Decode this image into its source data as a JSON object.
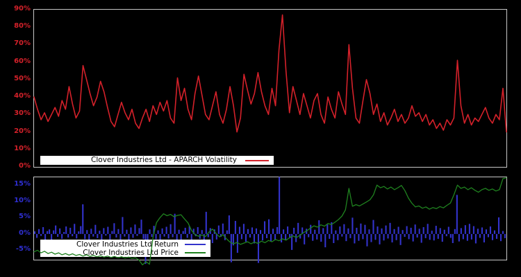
{
  "window": {
    "background": "#000000",
    "frame_color": "#c8c8c8"
  },
  "chart_data": [
    {
      "type": "line",
      "title": "Clover Industries Ltd - APARCH Volatility",
      "xlabel": "",
      "ylabel": "",
      "ylim": [
        0,
        90
      ],
      "yticks": [
        90,
        80,
        70,
        60,
        50,
        40,
        30,
        20,
        10,
        0
      ],
      "ytick_labels": [
        "90%",
        "80%",
        "70%",
        "60%",
        "50%",
        "40%",
        "30%",
        "20%",
        "10%",
        "0%"
      ],
      "axis_color": "#d4212a",
      "grid": false,
      "legend_position": "bottom-left-inside",
      "series": [
        {
          "name": "Clover Industries Ltd - APARCH Volatility",
          "color": "#d4212a",
          "unit": "%",
          "values": [
            40,
            33,
            27,
            31,
            26,
            30,
            34,
            29,
            38,
            33,
            46,
            36,
            28,
            32,
            58,
            50,
            42,
            35,
            40,
            49,
            43,
            34,
            26,
            23,
            30,
            37,
            31,
            27,
            33,
            25,
            22,
            28,
            33,
            26,
            35,
            30,
            37,
            32,
            38,
            28,
            25,
            51,
            38,
            45,
            33,
            27,
            42,
            52,
            41,
            30,
            27,
            35,
            43,
            30,
            25,
            33,
            46,
            35,
            20,
            28,
            53,
            44,
            36,
            42,
            54,
            43,
            35,
            30,
            45,
            35,
            67,
            87,
            55,
            31,
            46,
            38,
            30,
            42,
            35,
            28,
            38,
            42,
            30,
            25,
            40,
            33,
            28,
            43,
            36,
            30,
            70,
            45,
            28,
            25,
            38,
            50,
            42,
            30,
            36,
            26,
            31,
            24,
            28,
            33,
            26,
            30,
            25,
            28,
            35,
            29,
            31,
            26,
            30,
            24,
            27,
            22,
            25,
            21,
            27,
            24,
            28,
            61,
            35,
            25,
            30,
            24,
            28,
            26,
            30,
            34,
            28,
            25,
            30,
            27,
            45,
            20
          ]
        }
      ]
    },
    {
      "type": "bar+line",
      "title": "",
      "xlabel": "",
      "ylabel": "",
      "ylim": [
        -7.9,
        17.4
      ],
      "yticks": [
        15,
        10,
        5,
        0,
        -5
      ],
      "ytick_labels": [
        "15%",
        "10%",
        "5%",
        "0%",
        "-5%"
      ],
      "axis_color": "#2f2fd3",
      "grid": false,
      "legend_position": "bottom-left-inside",
      "series": [
        {
          "name": "Clover Industries Ltd Return",
          "type": "bar",
          "color": "#3333cc",
          "unit": "%",
          "values": [
            0.8,
            -1.2,
            1.5,
            -0.6,
            2.1,
            -1.8,
            0.9,
            1.4,
            -2.2,
            1.1,
            2.6,
            -0.9,
            1.7,
            -1.5,
            0.6,
            2.3,
            -1.1,
            1.9,
            -0.7,
            3.1,
            -1.4,
            0.8,
            2.4,
            9.1,
            -1.6,
            1.2,
            -2.0,
            1.6,
            -0.8,
            2.8,
            -1.3,
            1.0,
            -2.4,
            1.8,
            -0.5,
            2.2,
            -1.7,
            0.9,
            3.3,
            -1.1,
            1.5,
            -2.6,
            5.2,
            -0.8,
            1.3,
            -1.9,
            2.0,
            -1.2,
            2.9,
            -0.6,
            1.8,
            4.4,
            -1.5,
            -9.2,
            -2.1,
            1.4,
            -0.9,
            2.5,
            -1.6,
            1.1,
            -2.3,
            1.7,
            -0.8,
            2.2,
            -1.4,
            3.0,
            -1.0,
            6.2,
            -1.8,
            1.3,
            -2.7,
            0.9,
            1.9,
            -1.2,
            2.4,
            -3.1,
            1.6,
            -0.7,
            2.1,
            -1.5,
            1.2,
            -2.2,
            6.8,
            -1.0,
            1.8,
            -2.8,
            1.4,
            -1.7,
            2.6,
            -0.9,
            3.2,
            -1.9,
            1.1,
            5.7,
            -8.7,
            -3.5,
            4.0,
            -5.8,
            2.2,
            -1.6,
            3.1,
            -2.4,
            1.5,
            -1.1,
            2.0,
            -2.9,
            1.7,
            -8.9,
            1.2,
            -2.0,
            3.9,
            -1.3,
            4.5,
            -2.3,
            1.6,
            -1.9,
            2.1,
            17.5,
            -2.6,
            1.4,
            -1.8,
            2.3,
            -1.2,
            -4.9,
            1.9,
            -2.5,
            3.4,
            -1.4,
            2.0,
            -3.2,
            1.6,
            -1.0,
            2.8,
            -2.1,
            1.3,
            -1.7,
            4.2,
            -2.4,
            1.8,
            -4.1,
            2.9,
            -1.5,
            3.6,
            -2.8,
            1.1,
            -1.9,
            2.3,
            -0.8,
            3.0,
            -2.2,
            1.7,
            -1.3,
            5.0,
            -2.9,
            1.9,
            -2.1,
            3.2,
            -1.6,
            2.8,
            -3.8,
            1.4,
            -2.5,
            4.3,
            -1.8,
            2.3,
            -3.2,
            1.7,
            -2.0,
            2.6,
            -1.4,
            3.4,
            -2.6,
            1.5,
            -1.9,
            2.2,
            -3.4,
            1.2,
            -0.9,
            2.4,
            -1.6,
            1.9,
            -2.3,
            2.9,
            -1.1,
            1.6,
            -2.7,
            2.1,
            -1.3,
            3.1,
            -1.8,
            1.0,
            -2.0,
            2.5,
            -1.5,
            1.8,
            -2.4,
            1.3,
            -0.7,
            2.2,
            -1.2,
            -2.8,
            1.5,
            12.0,
            -2.3,
            1.8,
            -1.6,
            2.7,
            -2.1,
            3.1,
            -1.7,
            2.4,
            -2.9,
            1.6,
            -1.2,
            2.0,
            -2.6,
            1.4,
            -1.0,
            2.3,
            -1.9,
            1.1,
            -1.5,
            5.1,
            -2.2,
            0.9,
            -1.3
          ]
        },
        {
          "name": "Clover Industries Ltd Price",
          "type": "line",
          "color": "#1f821f",
          "unit": "%",
          "values": [
            -5.5,
            -5.0,
            -5.8,
            -5.3,
            -6.0,
            -5.6,
            -6.2,
            -5.8,
            -6.4,
            -6.0,
            -6.5,
            -6.1,
            -6.6,
            -6.3,
            -6.8,
            -6.4,
            -6.9,
            -6.6,
            -7.0,
            -6.7,
            -7.1,
            -6.8,
            -7.2,
            -6.9,
            -7.3,
            -7.0,
            -7.4,
            -7.1,
            -7.5,
            -7.3,
            -8.0,
            -9.5,
            -8.5,
            -9.3,
            -1.0,
            3.5,
            5.0,
            6.2,
            5.6,
            6.0,
            5.3,
            5.7,
            5.9,
            4.6,
            3.4,
            1.1,
            -0.2,
            -0.7,
            -0.3,
            -0.8,
            0.6,
            1.5,
            0.2,
            -0.9,
            -0.2,
            -1.5,
            -2.5,
            -3.0,
            -2.6,
            -3.2,
            -2.8,
            -2.4,
            -3.0,
            -2.5,
            -2.9,
            -2.2,
            -2.7,
            -2.0,
            -2.4,
            -1.7,
            -2.1,
            -1.5,
            -1.9,
            -1.2,
            -0.6,
            -1.1,
            -0.4,
            0.4,
            1.0,
            1.8,
            2.5,
            2.1,
            2.8,
            2.4,
            3.2,
            2.9,
            3.6,
            4.4,
            5.5,
            7.4,
            14.0,
            8.5,
            9.0,
            8.6,
            9.2,
            9.8,
            10.5,
            12.0,
            15.0,
            14.2,
            14.6,
            13.8,
            14.4,
            13.6,
            14.2,
            14.9,
            13.3,
            11.0,
            9.4,
            8.3,
            8.6,
            7.9,
            8.3,
            7.6,
            8.1,
            7.8,
            8.4,
            8.0,
            8.8,
            9.5,
            12.0,
            15.0,
            14.0,
            14.4,
            13.6,
            14.2,
            13.4,
            12.8,
            13.6,
            14.0,
            13.4,
            13.8,
            13.2,
            13.6,
            17.0,
            17.2
          ]
        }
      ]
    }
  ]
}
